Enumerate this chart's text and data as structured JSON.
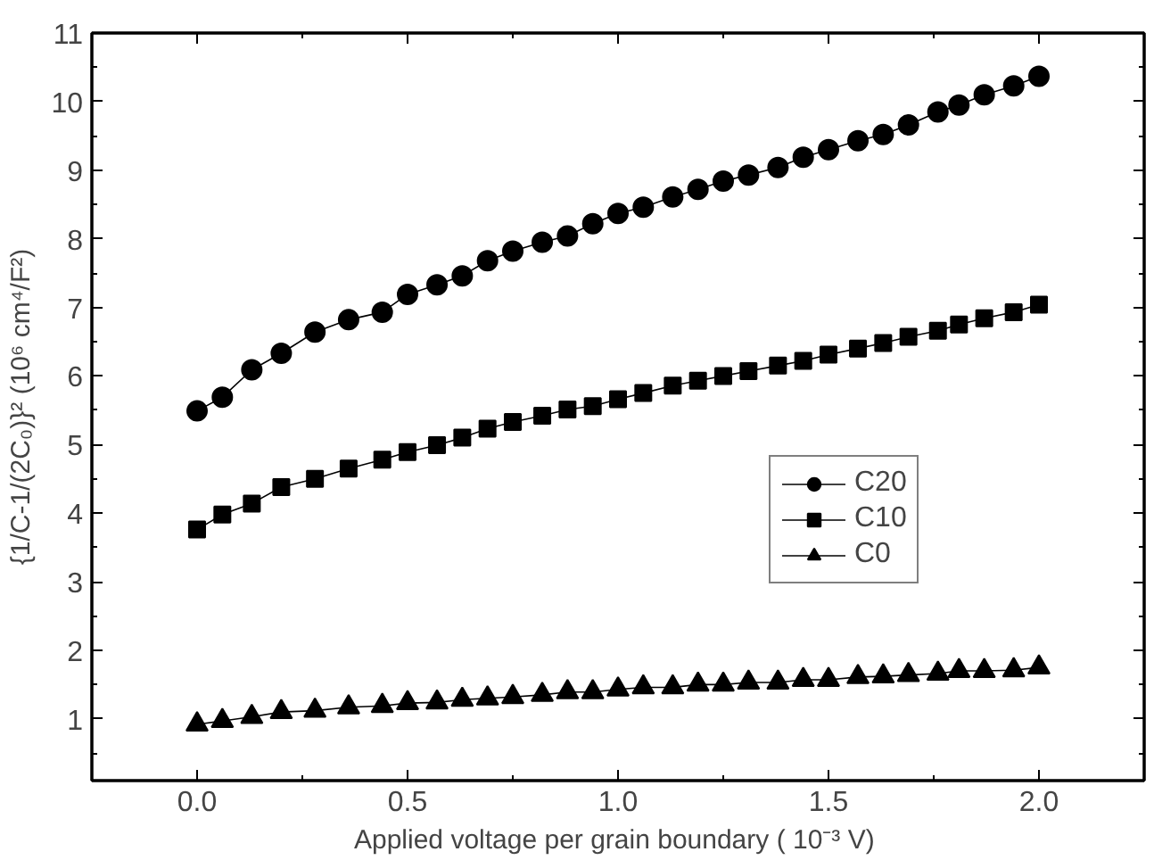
{
  "chart_data": {
    "type": "line",
    "xlabel": "Applied voltage per grain boundary  ( 10⁻³ V)",
    "ylabel": "{1/C-1/(2C₀)}² (10⁶ cm⁴/F²)",
    "x": [
      0.0,
      0.06,
      0.13,
      0.2,
      0.28,
      0.36,
      0.44,
      0.5,
      0.57,
      0.63,
      0.69,
      0.75,
      0.82,
      0.88,
      0.94,
      1.0,
      1.06,
      1.13,
      1.19,
      1.25,
      1.31,
      1.38,
      1.44,
      1.5,
      1.57,
      1.63,
      1.69,
      1.76,
      1.81,
      1.87,
      1.94,
      2.0
    ],
    "series": [
      {
        "name": "C20",
        "color": "#000000",
        "marker": "circle",
        "values": [
          5.49,
          5.69,
          6.09,
          6.33,
          6.64,
          6.82,
          6.93,
          7.19,
          7.33,
          7.46,
          7.68,
          7.82,
          7.95,
          8.04,
          8.22,
          8.37,
          8.46,
          8.61,
          8.72,
          8.84,
          8.93,
          9.04,
          9.19,
          9.3,
          9.43,
          9.52,
          9.66,
          9.85,
          9.95,
          10.1,
          10.23,
          10.37
        ]
      },
      {
        "name": "C10",
        "color": "#000000",
        "marker": "square",
        "values": [
          3.76,
          3.98,
          4.14,
          4.38,
          4.5,
          4.65,
          4.78,
          4.89,
          4.99,
          5.1,
          5.23,
          5.33,
          5.42,
          5.51,
          5.56,
          5.66,
          5.75,
          5.86,
          5.93,
          6.0,
          6.07,
          6.15,
          6.22,
          6.31,
          6.4,
          6.48,
          6.57,
          6.66,
          6.75,
          6.84,
          6.93,
          7.04
        ]
      },
      {
        "name": "C0",
        "color": "#000000",
        "marker": "triangle",
        "values": [
          0.92,
          0.97,
          1.03,
          1.1,
          1.12,
          1.17,
          1.19,
          1.23,
          1.24,
          1.28,
          1.3,
          1.32,
          1.35,
          1.39,
          1.39,
          1.43,
          1.46,
          1.46,
          1.5,
          1.5,
          1.53,
          1.53,
          1.57,
          1.57,
          1.61,
          1.62,
          1.64,
          1.66,
          1.7,
          1.7,
          1.71,
          1.75
        ]
      }
    ],
    "xlim": [
      -0.25,
      2.25
    ],
    "ylim": [
      0.1,
      11
    ],
    "xticks": [
      {
        "value": 0,
        "label": "0.0"
      },
      {
        "value": 0.5,
        "label": "0.5"
      },
      {
        "value": 1,
        "label": "1.0"
      },
      {
        "value": 1.5,
        "label": "1.5"
      },
      {
        "value": 2,
        "label": "2.0"
      }
    ],
    "yticks": [
      1,
      2,
      3,
      4,
      5,
      6,
      7,
      8,
      9,
      10,
      11
    ],
    "grid": false,
    "legend": "right",
    "line_style": "solid"
  }
}
